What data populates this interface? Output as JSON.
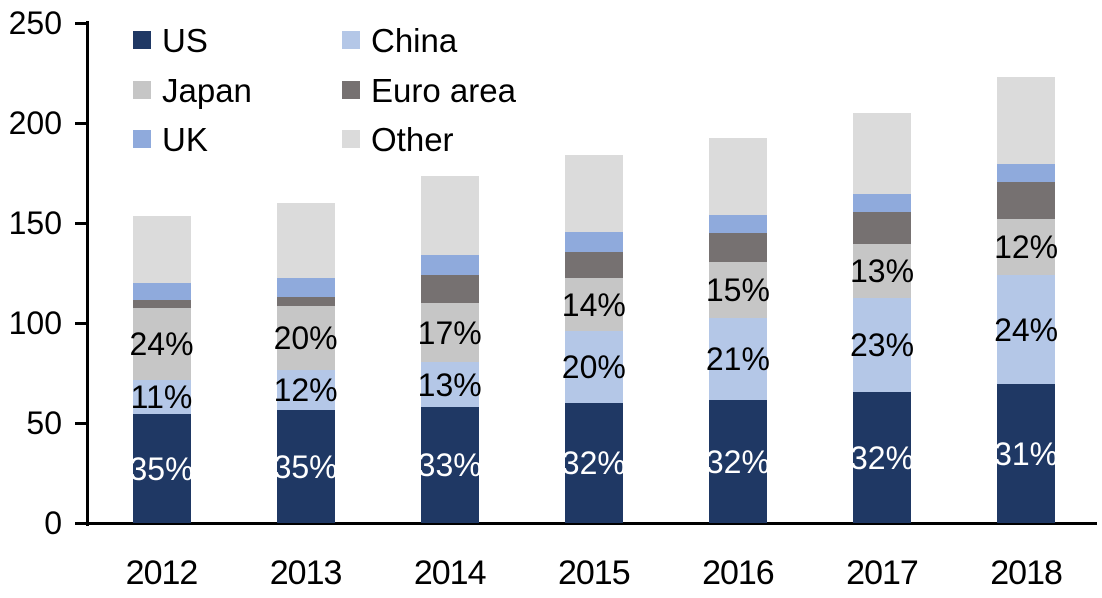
{
  "chart_data": {
    "type": "bar",
    "variant": "stacked-column",
    "categories": [
      "2012",
      "2013",
      "2014",
      "2015",
      "2016",
      "2017",
      "2018"
    ],
    "series": [
      {
        "name": "US",
        "color": "#1F3864",
        "values": [
          54.5,
          56.5,
          58.0,
          60.0,
          61.5,
          65.5,
          69.5
        ],
        "labels": [
          "35%",
          "35%",
          "33%",
          "32%",
          "32%",
          "32%",
          "31%"
        ],
        "label_color": "#FFFFFF"
      },
      {
        "name": "China",
        "color": "#B4C7E7",
        "values": [
          17.0,
          20.0,
          22.5,
          36.0,
          41.0,
          47.0,
          54.5
        ],
        "labels": [
          "11%",
          "12%",
          "13%",
          "20%",
          "21%",
          "23%",
          "24%"
        ],
        "label_color": "#000000"
      },
      {
        "name": "Japan",
        "color": "#C6C6C6",
        "values": [
          36.0,
          32.0,
          29.5,
          26.5,
          28.0,
          27.0,
          28.0
        ],
        "labels": [
          "24%",
          "20%",
          "17%",
          "14%",
          "15%",
          "13%",
          "12%"
        ],
        "label_color": "#000000"
      },
      {
        "name": "Euro area",
        "color": "#767171",
        "values": [
          4.0,
          4.5,
          14.0,
          13.0,
          14.5,
          16.0,
          18.5
        ],
        "labels": null,
        "label_color": "#000000"
      },
      {
        "name": "UK",
        "color": "#8FAADC",
        "values": [
          8.5,
          9.5,
          10.0,
          10.0,
          9.0,
          9.0,
          9.0
        ],
        "labels": null,
        "label_color": "#000000"
      },
      {
        "name": "Other",
        "color": "#DBDBDB",
        "values": [
          33.5,
          37.5,
          39.5,
          38.5,
          38.5,
          40.5,
          43.5
        ],
        "labels": null,
        "label_color": "#000000"
      }
    ],
    "totals": [
      153.5,
      160,
      173.5,
      184,
      192.5,
      205,
      223
    ],
    "y_axis": {
      "min": 0,
      "max": 250,
      "step": 50,
      "tick_labels": [
        "0",
        "50",
        "100",
        "150",
        "200",
        "250"
      ]
    },
    "x_axis": {
      "tick_labels": [
        "2012",
        "2013",
        "2014",
        "2015",
        "2016",
        "2017",
        "2018"
      ]
    },
    "legend": {
      "position": "top-left-inside",
      "columns": 2,
      "items": [
        "US",
        "China",
        "Japan",
        "Euro area",
        "UK",
        "Other"
      ]
    },
    "grid": "off",
    "axis_color": "#000000",
    "text_color": "#000000"
  }
}
